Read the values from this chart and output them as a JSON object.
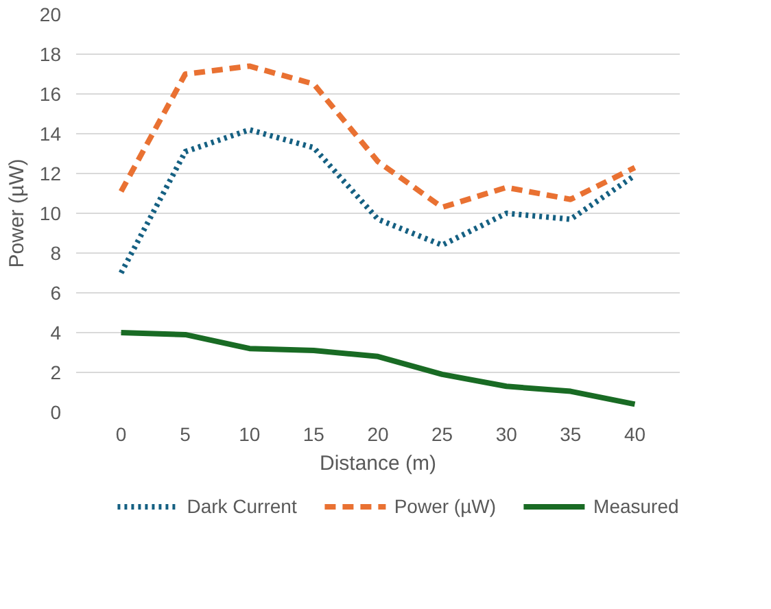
{
  "chart_data": {
    "type": "line",
    "xlabel": "Distance (m)",
    "ylabel": "Power (µW)",
    "categories": [
      "0",
      "5",
      "10",
      "15",
      "20",
      "25",
      "30",
      "35",
      "40"
    ],
    "ylim": [
      0,
      20
    ],
    "yticks": [
      0,
      2,
      4,
      6,
      8,
      10,
      12,
      14,
      16,
      18,
      20
    ],
    "grid": "y",
    "legend": "bottom",
    "marker": "none",
    "series": [
      {
        "name": "Dark Current",
        "color": "#156082",
        "line_style": "dotted",
        "values": [
          7.0,
          13.1,
          14.2,
          13.3,
          9.7,
          8.4,
          10.0,
          9.7,
          11.9
        ]
      },
      {
        "name": "Power (µW)",
        "color": "#e97132",
        "line_style": "dashed",
        "values": [
          11.1,
          17.0,
          17.4,
          16.5,
          12.6,
          10.3,
          11.3,
          10.7,
          12.3
        ]
      },
      {
        "name": "Measured",
        "color": "#196b24",
        "line_style": "solid",
        "values": [
          4.0,
          3.9,
          3.2,
          3.1,
          2.8,
          1.9,
          1.3,
          1.05,
          0.4
        ]
      }
    ]
  }
}
